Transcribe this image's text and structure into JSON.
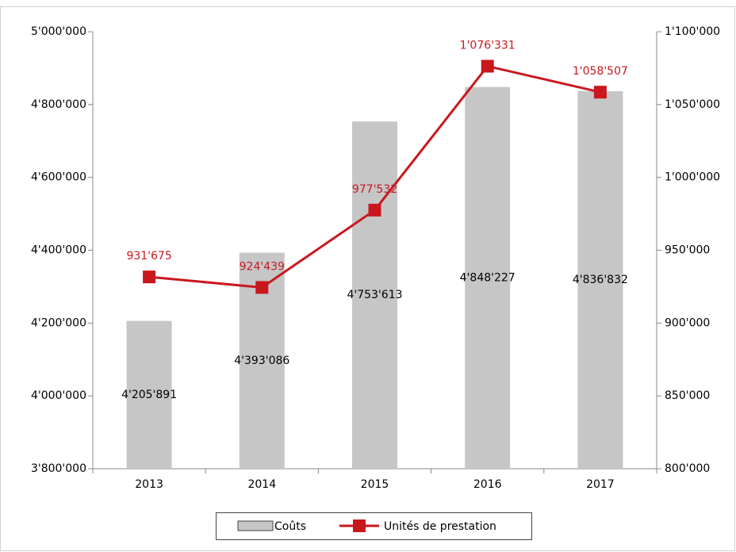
{
  "chart_data": {
    "type": "bar",
    "categories": [
      "2013",
      "2014",
      "2015",
      "2016",
      "2017"
    ],
    "series": [
      {
        "name": "Coûts",
        "type": "bar",
        "color": "#c6c6c6",
        "values": [
          4205891,
          4393086,
          4753613,
          4848227,
          4836832
        ],
        "value_labels": [
          "4'205'891",
          "4'393'086",
          "4'753'613",
          "4'848'227",
          "4'836'832"
        ]
      },
      {
        "name": "Unités de prestation",
        "type": "line",
        "axis": "y2",
        "color": "#c8181e",
        "values": [
          931675,
          924439,
          977532,
          1076331,
          1058507
        ],
        "value_labels": [
          "931'675",
          "924'439",
          "977'532",
          "1'076'331",
          "1'058'507"
        ]
      }
    ],
    "ylim": [
      3800000,
      5000000
    ],
    "yticks": [
      {
        "value": 3800000,
        "label": "3'800'000"
      },
      {
        "value": 4000000,
        "label": "4'000'000"
      },
      {
        "value": 4200000,
        "label": "4'200'000"
      },
      {
        "value": 4400000,
        "label": "4'400'000"
      },
      {
        "value": 4600000,
        "label": "4'600'000"
      },
      {
        "value": 4800000,
        "label": "4'800'000"
      },
      {
        "value": 5000000,
        "label": "5'000'000"
      }
    ],
    "y2lim": [
      800000,
      1100000
    ],
    "y2ticks": [
      {
        "value": 800000,
        "label": "800'000"
      },
      {
        "value": 850000,
        "label": "850'000"
      },
      {
        "value": 900000,
        "label": "900'000"
      },
      {
        "value": 950000,
        "label": "950'000"
      },
      {
        "value": 1000000,
        "label": "1'000'000"
      },
      {
        "value": 1050000,
        "label": "1'050'000"
      },
      {
        "value": 1100000,
        "label": "1'100'000"
      }
    ],
    "legend": "bottom"
  }
}
